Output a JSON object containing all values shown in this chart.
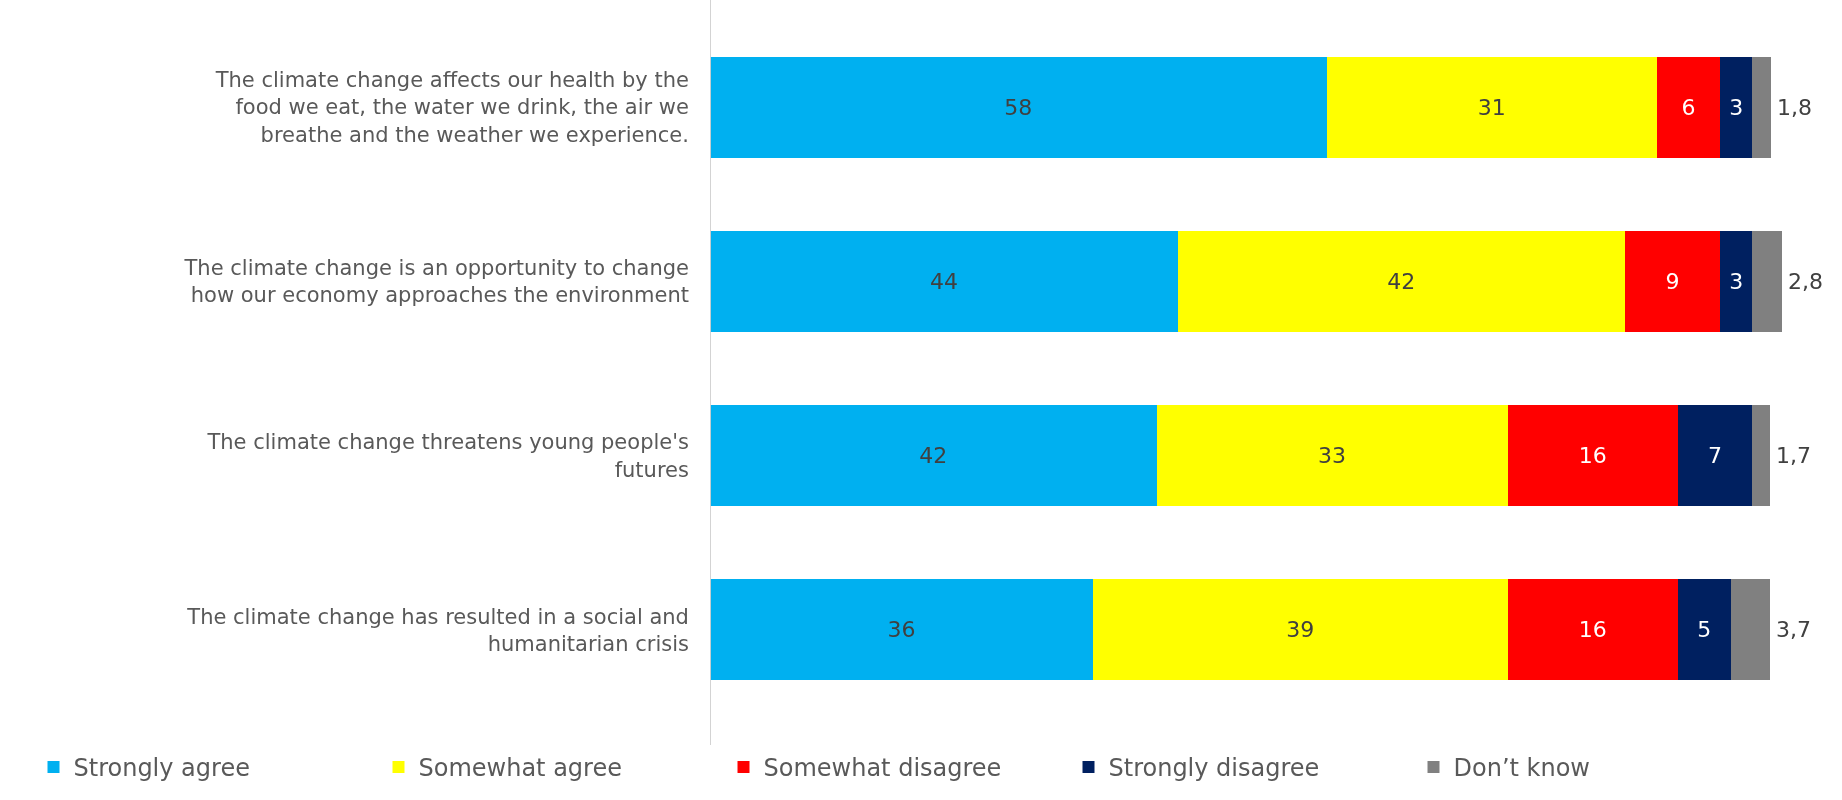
{
  "chart_data": {
    "type": "bar",
    "orientation": "horizontal",
    "stacked": true,
    "legend": "bottom",
    "categories": [
      "The climate change affects our health by the food we eat, the water we drink, the air we breathe and the weather we experience.",
      "The climate change is an opportunity to change how our economy approaches the environment",
      "The climate change threatens young people's futures",
      "The climate change has resulted in a social and humanitarian crisis"
    ],
    "series": [
      {
        "name": "Strongly agree",
        "color": "#00b0f0",
        "values": [
          58,
          44,
          42,
          36
        ],
        "value_labels": [
          "58",
          "44",
          "42",
          "36"
        ]
      },
      {
        "name": "Somewhat agree",
        "color": "#ffff00",
        "values": [
          31,
          42,
          33,
          39
        ],
        "value_labels": [
          "31",
          "42",
          "33",
          "39"
        ]
      },
      {
        "name": "Somewhat disagree",
        "color": "#ff0000",
        "values": [
          6,
          9,
          16,
          16
        ],
        "value_labels": [
          "6",
          "9",
          "16",
          "16"
        ]
      },
      {
        "name": "Strongly disagree",
        "color": "#002060",
        "values": [
          3,
          3,
          7,
          5
        ],
        "value_labels": [
          "3",
          "3",
          "7",
          "5"
        ]
      },
      {
        "name": "Don’t know",
        "color": "#808080",
        "values": [
          1.8,
          2.8,
          1.7,
          3.7
        ],
        "value_labels": [
          "1,8",
          "2,8",
          "1,7",
          "3,7"
        ]
      }
    ]
  }
}
